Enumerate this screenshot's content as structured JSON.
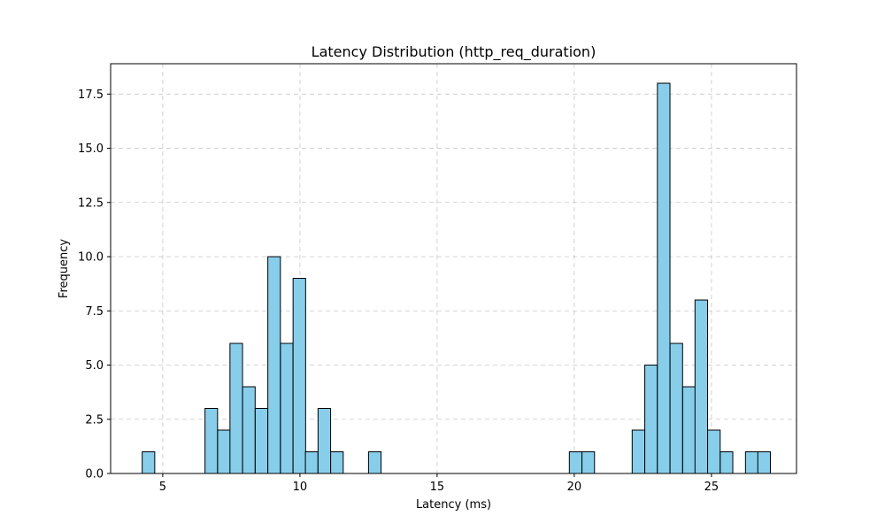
{
  "chart_data": {
    "type": "bar",
    "title": "Latency Distribution (http_req_duration)",
    "xlabel": "Latency (ms)",
    "ylabel": "Frequency",
    "xlim": [
      3.1,
      28.1
    ],
    "ylim": [
      0,
      18.9
    ],
    "xticks": [
      5,
      10,
      15,
      20,
      25
    ],
    "yticks": [
      0.0,
      2.5,
      5.0,
      7.5,
      10.0,
      12.5,
      15.0,
      17.5
    ],
    "bin_width": 0.458,
    "bins": [
      {
        "x0": 4.25,
        "count": 1
      },
      {
        "x0": 6.54,
        "count": 3
      },
      {
        "x0": 7.0,
        "count": 2
      },
      {
        "x0": 7.45,
        "count": 6
      },
      {
        "x0": 7.91,
        "count": 4
      },
      {
        "x0": 8.37,
        "count": 3
      },
      {
        "x0": 8.83,
        "count": 10
      },
      {
        "x0": 9.29,
        "count": 6
      },
      {
        "x0": 9.75,
        "count": 9
      },
      {
        "x0": 10.2,
        "count": 1
      },
      {
        "x0": 10.66,
        "count": 3
      },
      {
        "x0": 11.12,
        "count": 1
      },
      {
        "x0": 12.5,
        "count": 1
      },
      {
        "x0": 19.82,
        "count": 1
      },
      {
        "x0": 20.28,
        "count": 1
      },
      {
        "x0": 22.11,
        "count": 2
      },
      {
        "x0": 22.57,
        "count": 5
      },
      {
        "x0": 23.03,
        "count": 18
      },
      {
        "x0": 23.49,
        "count": 6
      },
      {
        "x0": 23.95,
        "count": 4
      },
      {
        "x0": 24.4,
        "count": 8
      },
      {
        "x0": 24.86,
        "count": 2
      },
      {
        "x0": 25.32,
        "count": 1
      },
      {
        "x0": 26.24,
        "count": 1
      },
      {
        "x0": 26.69,
        "count": 1
      }
    ],
    "bar_color": "#87ceeb",
    "edge_color": "#000000",
    "grid": true
  }
}
